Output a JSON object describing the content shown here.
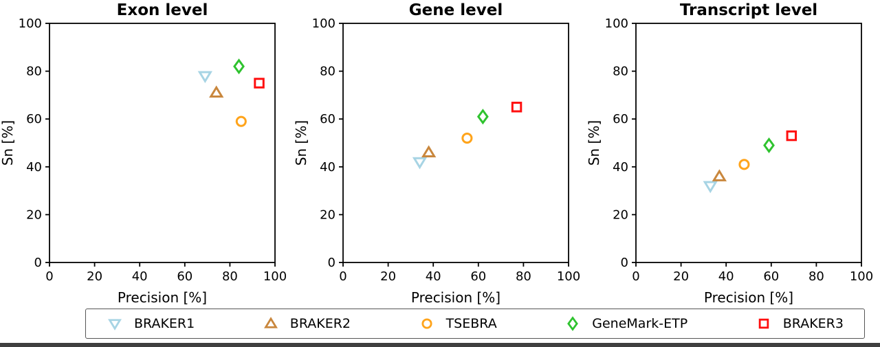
{
  "figure": {
    "panel_titles": [
      "Exon level",
      "Gene level",
      "Transcript level"
    ],
    "xlabel": "Precision [%]",
    "ylabel": "Sn [%]"
  },
  "legend": {
    "items": [
      {
        "label": "BRAKER1",
        "marker": "triangle-down",
        "color": "#a7d4e4"
      },
      {
        "label": "BRAKER2",
        "marker": "triangle-up",
        "color": "#c9873d"
      },
      {
        "label": "TSEBRA",
        "marker": "circle",
        "color": "#ffa41b"
      },
      {
        "label": "GeneMark-ETP",
        "marker": "diamond",
        "color": "#2fc32f"
      },
      {
        "label": "BRAKER3",
        "marker": "square",
        "color": "#ff0f0f"
      }
    ]
  },
  "chart_data": [
    {
      "type": "scatter",
      "title": "Exon level",
      "xlabel": "Precision [%]",
      "ylabel": "Sn [%]",
      "xlim": [
        0,
        100
      ],
      "ylim": [
        0,
        100
      ],
      "xticks": [
        0,
        20,
        40,
        60,
        80,
        100
      ],
      "yticks": [
        0,
        20,
        40,
        60,
        80,
        100
      ],
      "grid": false,
      "legend_position": "outside-bottom",
      "series": [
        {
          "name": "BRAKER1",
          "marker": "triangle-down",
          "color": "#a7d4e4",
          "points": [
            [
              69,
              78
            ]
          ]
        },
        {
          "name": "BRAKER2",
          "marker": "triangle-up",
          "color": "#c9873d",
          "points": [
            [
              74,
              71
            ]
          ]
        },
        {
          "name": "TSEBRA",
          "marker": "circle",
          "color": "#ffa41b",
          "points": [
            [
              85,
              59
            ]
          ]
        },
        {
          "name": "GeneMark-ETP",
          "marker": "diamond",
          "color": "#2fc32f",
          "points": [
            [
              84,
              82
            ]
          ]
        },
        {
          "name": "BRAKER3",
          "marker": "square",
          "color": "#ff0f0f",
          "points": [
            [
              93,
              75
            ]
          ]
        }
      ]
    },
    {
      "type": "scatter",
      "title": "Gene level",
      "xlabel": "Precision [%]",
      "ylabel": "Sn [%]",
      "xlim": [
        0,
        100
      ],
      "ylim": [
        0,
        100
      ],
      "xticks": [
        0,
        20,
        40,
        60,
        80,
        100
      ],
      "yticks": [
        0,
        20,
        40,
        60,
        80,
        100
      ],
      "grid": false,
      "legend_position": "outside-bottom",
      "series": [
        {
          "name": "BRAKER1",
          "marker": "triangle-down",
          "color": "#a7d4e4",
          "points": [
            [
              34,
              42
            ]
          ]
        },
        {
          "name": "BRAKER2",
          "marker": "triangle-up",
          "color": "#c9873d",
          "points": [
            [
              38,
              46
            ]
          ]
        },
        {
          "name": "TSEBRA",
          "marker": "circle",
          "color": "#ffa41b",
          "points": [
            [
              55,
              52
            ]
          ]
        },
        {
          "name": "GeneMark-ETP",
          "marker": "diamond",
          "color": "#2fc32f",
          "points": [
            [
              62,
              61
            ]
          ]
        },
        {
          "name": "BRAKER3",
          "marker": "square",
          "color": "#ff0f0f",
          "points": [
            [
              77,
              65
            ]
          ]
        }
      ]
    },
    {
      "type": "scatter",
      "title": "Transcript level",
      "xlabel": "Precision [%]",
      "ylabel": "Sn [%]",
      "xlim": [
        0,
        100
      ],
      "ylim": [
        0,
        100
      ],
      "xticks": [
        0,
        20,
        40,
        60,
        80,
        100
      ],
      "yticks": [
        0,
        20,
        40,
        60,
        80,
        100
      ],
      "grid": false,
      "legend_position": "outside-bottom",
      "series": [
        {
          "name": "BRAKER1",
          "marker": "triangle-down",
          "color": "#a7d4e4",
          "points": [
            [
              33,
              32
            ]
          ]
        },
        {
          "name": "BRAKER2",
          "marker": "triangle-up",
          "color": "#c9873d",
          "points": [
            [
              37,
              36
            ]
          ]
        },
        {
          "name": "TSEBRA",
          "marker": "circle",
          "color": "#ffa41b",
          "points": [
            [
              48,
              41
            ]
          ]
        },
        {
          "name": "GeneMark-ETP",
          "marker": "diamond",
          "color": "#2fc32f",
          "points": [
            [
              59,
              49
            ]
          ]
        },
        {
          "name": "BRAKER3",
          "marker": "square",
          "color": "#ff0f0f",
          "points": [
            [
              69,
              53
            ]
          ]
        }
      ]
    }
  ]
}
